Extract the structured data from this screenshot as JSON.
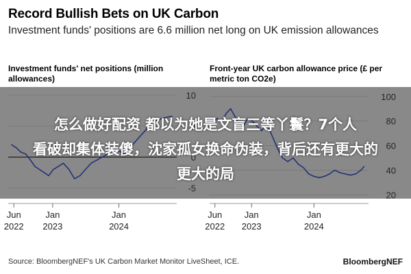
{
  "header": {
    "title": "Record Bullish Bets on UK Carbon",
    "subtitle": "Investment funds' positions are 6.6 million net long on UK emission allowances"
  },
  "overlay": {
    "line1": "怎么做好配资 都以为她是文盲三等丫鬟？7个人",
    "line2": "看破却集体装傻，沈家孤女换命伪装，背后还有更大的",
    "line3": "更大的局"
  },
  "footer": {
    "source": "Source: BloombergNEF's UK Carbon Market Monitor LiveSheet, ICE.",
    "brand": "BloombergNEF"
  },
  "colors": {
    "line": "#1a3fd1",
    "zero": "#000000",
    "grid": "#dddddd"
  },
  "chart_data": [
    {
      "type": "line",
      "title": "Investment funds' net positions (million allowances)",
      "x_tick_labels": [
        [
          "Jun",
          "2022"
        ],
        [
          "Jan",
          "2023"
        ],
        [
          "Jan",
          "2024"
        ]
      ],
      "x_tick_dates": [
        "2022-06-01",
        "2023-01-01",
        "2024-01-01"
      ],
      "xlim": [
        "2022-05-01",
        "2024-11-15"
      ],
      "y_tick_labels": [
        "10",
        "5",
        "0",
        "-5"
      ],
      "y_ticks": [
        10,
        5,
        0,
        -5
      ],
      "ylim": [
        -6.5,
        11
      ],
      "series": [
        {
          "x": [
            "2022-05-20",
            "2022-06-15",
            "2022-07-10",
            "2022-08-05",
            "2022-09-01",
            "2022-09-25",
            "2022-10-20",
            "2022-11-15",
            "2022-12-10",
            "2023-01-05",
            "2023-02-01",
            "2023-03-01",
            "2023-04-01",
            "2023-05-01",
            "2023-06-01",
            "2023-07-01",
            "2023-08-01",
            "2023-09-01",
            "2023-10-01",
            "2023-11-01",
            "2023-12-01",
            "2024-01-01",
            "2024-02-01",
            "2024-03-01",
            "2024-04-01",
            "2024-05-01",
            "2024-06-01",
            "2024-07-01",
            "2024-08-01",
            "2024-09-01",
            "2024-10-01",
            "2024-10-20"
          ],
          "y": [
            2.0,
            1.5,
            0.8,
            0.5,
            -0.5,
            -1.5,
            -2.0,
            -2.5,
            -3.0,
            -2.0,
            -1.5,
            -1.0,
            -2.0,
            -3.5,
            -3.0,
            -2.0,
            -1.0,
            -0.5,
            0.0,
            0.5,
            1.5,
            1.0,
            0.5,
            1.5,
            2.5,
            3.5,
            4.5,
            5.5,
            6.0,
            6.3,
            6.5,
            6.6
          ]
        }
      ]
    },
    {
      "type": "line",
      "title": "Front-year UK carbon allowance price (£ per metric ton CO2e)",
      "x_tick_labels": [
        [
          "Jun",
          "2022"
        ],
        [
          "Jan",
          "2023"
        ],
        [
          "Jan",
          "2024"
        ]
      ],
      "x_tick_dates": [
        "2022-06-01",
        "2023-01-01",
        "2024-01-01"
      ],
      "xlim": [
        "2022-05-01",
        "2024-11-15"
      ],
      "y_tick_labels": [
        "100",
        "80",
        "60",
        "40",
        "20"
      ],
      "y_ticks": [
        100,
        80,
        60,
        40,
        20
      ],
      "ylim": [
        18,
        106
      ],
      "series": [
        {
          "x": [
            "2022-05-20",
            "2022-06-15",
            "2022-07-10",
            "2022-08-05",
            "2022-09-01",
            "2022-09-25",
            "2022-10-20",
            "2022-11-15",
            "2022-12-10",
            "2023-01-05",
            "2023-02-01",
            "2023-03-01",
            "2023-04-01",
            "2023-05-01",
            "2023-06-01",
            "2023-07-01",
            "2023-08-01",
            "2023-09-01",
            "2023-10-01",
            "2023-11-01",
            "2023-12-01",
            "2024-01-01",
            "2024-02-01",
            "2024-03-01",
            "2024-04-01",
            "2024-05-01",
            "2024-06-01",
            "2024-07-01",
            "2024-08-01",
            "2024-09-01",
            "2024-10-01",
            "2024-10-20"
          ],
          "y": [
            80,
            82,
            79,
            86,
            90,
            84,
            78,
            76,
            82,
            80,
            76,
            72,
            78,
            68,
            58,
            50,
            47,
            50,
            45,
            42,
            37,
            35,
            34,
            35,
            37,
            40,
            38,
            37,
            36,
            37,
            40,
            43
          ]
        }
      ]
    }
  ]
}
